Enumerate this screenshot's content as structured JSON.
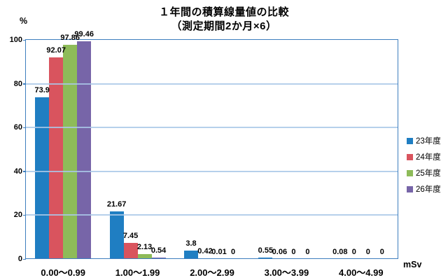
{
  "chart_data": {
    "type": "bar",
    "title": "１年間の積算線量値の比較",
    "subtitle": "（測定期間2か月×6）",
    "ylabel": "%",
    "xlabel": "mSv",
    "ylim": [
      0,
      100
    ],
    "yticks": [
      0,
      20,
      40,
      60,
      80,
      100
    ],
    "grid": true,
    "legend_position": "right",
    "categories": [
      "0.00～0.99",
      "1.00～1.99",
      "2.00～2.99",
      "3.00～3.99",
      "4.00～4.99"
    ],
    "series": [
      {
        "name": "23年度",
        "color": "#1F7EC2",
        "values": [
          73.9,
          21.67,
          3.8,
          0.55,
          0.08
        ],
        "labels": [
          "73.9",
          "21.67",
          "3.8",
          "0.55",
          "0.08"
        ]
      },
      {
        "name": "24年度",
        "color": "#D9545E",
        "values": [
          92.07,
          7.45,
          0.42,
          0.06,
          0
        ],
        "labels": [
          "92.07",
          "7.45",
          "0.42",
          "0.06",
          "0"
        ]
      },
      {
        "name": "25年度",
        "color": "#8EBB59",
        "values": [
          97.86,
          2.13,
          0.01,
          0,
          0
        ],
        "labels": [
          "97.86",
          "2.13",
          "0.01",
          "0",
          "0"
        ]
      },
      {
        "name": "26年度",
        "color": "#7765A8",
        "values": [
          99.46,
          0.54,
          0,
          0,
          0
        ],
        "labels": [
          "99.46",
          "0.54",
          "0",
          "0",
          "0"
        ]
      }
    ]
  },
  "colors": {
    "axis": "#3E7EBE",
    "gridline": "#A9C8E8",
    "text": "#000000",
    "background": "#FFFFFF"
  }
}
